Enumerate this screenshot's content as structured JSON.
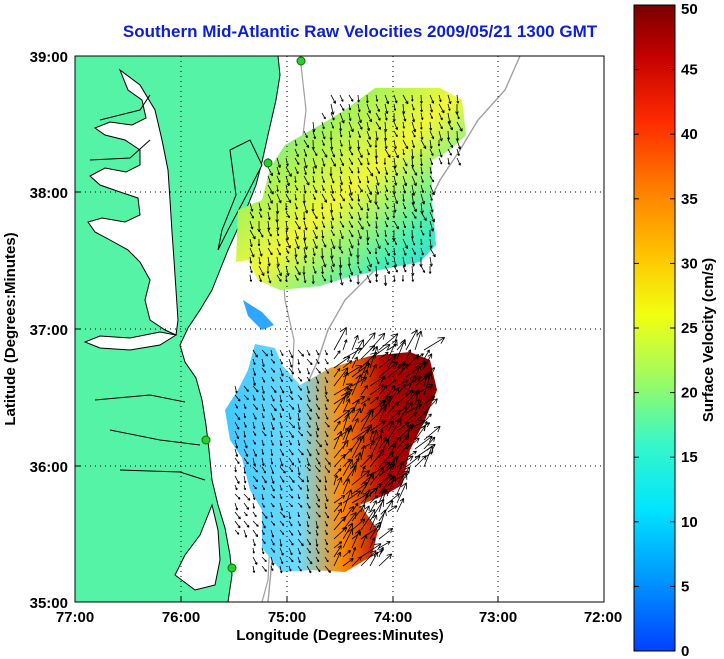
{
  "title": "Southern Mid-Atlantic Raw Velocities 2009/05/21 1300 GMT",
  "axes": {
    "xlabel": "Longitude (Degrees:Minutes)",
    "ylabel": "Latitude (Degrees:Minutes)",
    "xticks": [
      "77:00",
      "76:00",
      "75:00",
      "74:00",
      "73:00",
      "72:00"
    ],
    "yticks": [
      "39:00",
      "38:00",
      "37:00",
      "36:00",
      "35:00"
    ],
    "xlim": [
      -77,
      -72
    ],
    "ylim": [
      35,
      39
    ]
  },
  "colorbar": {
    "label": "Surface Velocity (cm/s)",
    "ticks": [
      "50",
      "45",
      "40",
      "35",
      "30",
      "25",
      "20",
      "15",
      "10",
      "5",
      "0"
    ],
    "range": [
      0,
      50
    ]
  },
  "colors": {
    "land": "#55f3a6",
    "title": "#0b1fd6"
  }
}
